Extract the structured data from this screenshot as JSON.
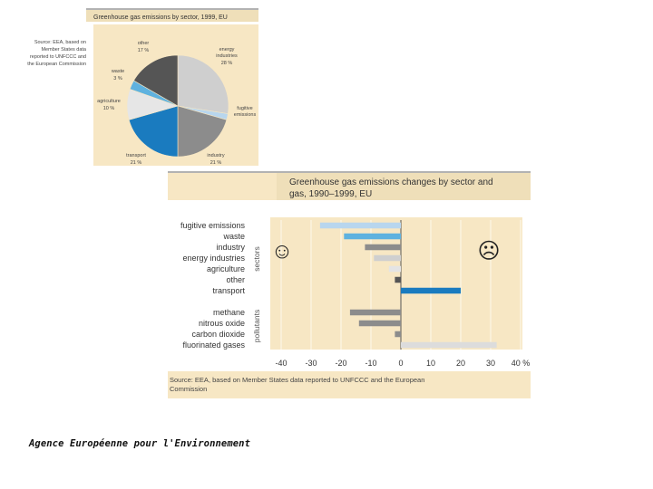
{
  "caption": "Agence Européenne pour l'Environnement",
  "colors": {
    "panel": "#f7e7c4",
    "header": "#efdfb9",
    "blue_dark": "#1a7bbf",
    "blue_light": "#5fb2df",
    "grey_dark": "#555555",
    "grey_mid": "#8c8c8c",
    "grey_light": "#cfcfcf",
    "lightblue_bar": "#b8d6ee"
  },
  "pie_chart": {
    "title": "Greenhouse gas emissions by sector, 1999, EU",
    "source_lines": [
      "Source: EEA, based on",
      "Member States data",
      "reported to UNFCCC and",
      "the European Commission"
    ],
    "chart_data": {
      "type": "pie",
      "title": "Greenhouse gas emissions by sector, 1999, EU",
      "slices": [
        {
          "name": "energy industries",
          "label_lines": [
            "energy",
            "industries"
          ],
          "value_label": "28 %",
          "value": 28,
          "color": "#cfcfcf"
        },
        {
          "name": "fugitive emissions",
          "label_lines": [
            "fugitive",
            "emissions"
          ],
          "value_label": "",
          "value": 2,
          "color": "#b8d6ee"
        },
        {
          "name": "industry",
          "label_lines": [
            "industry"
          ],
          "value_label": "21 %",
          "value": 21,
          "color": "#8c8c8c"
        },
        {
          "name": "transport",
          "label_lines": [
            "transport"
          ],
          "value_label": "21 %",
          "value": 21,
          "color": "#1a7bbf"
        },
        {
          "name": "agriculture",
          "label_lines": [
            "agriculture"
          ],
          "value_label": "10 %",
          "value": 10,
          "color": "#e6e6e6"
        },
        {
          "name": "waste",
          "label_lines": [
            "waste"
          ],
          "value_label": "3 %",
          "value": 3,
          "color": "#5fb2df"
        },
        {
          "name": "other",
          "label_lines": [
            "other"
          ],
          "value_label": "17 %",
          "value": 17,
          "color": "#555555"
        }
      ]
    }
  },
  "bar_chart": {
    "title_lines": [
      "Greenhouse gas emissions changes by sector and",
      "gas, 1990–1999, EU"
    ],
    "source_lines": [
      "Source: EEA, based on Member States data reported to UNFCCC and the European",
      "Commission"
    ],
    "group_labels": {
      "sectors": "sectors",
      "pollutants": "pollutants"
    },
    "smileys": {
      "positive": "☺",
      "negative": "☹"
    },
    "chart_data": {
      "type": "bar",
      "orientation": "horizontal",
      "title": "Greenhouse gas emissions changes by sector and gas, 1990–1999, EU",
      "xlim": [
        -40,
        40
      ],
      "xticks": [
        "-40",
        "-30",
        "-20",
        "-10",
        "0",
        "10",
        "20",
        "30",
        "40 %"
      ],
      "xtick_values": [
        -40,
        -30,
        -20,
        -10,
        0,
        10,
        20,
        30,
        40
      ],
      "groups": [
        {
          "name": "sectors",
          "bars": [
            {
              "label": "fugitive emissions",
              "value": -27,
              "color": "#b8d6ee"
            },
            {
              "label": "waste",
              "value": -19,
              "color": "#5fb2df"
            },
            {
              "label": "industry",
              "value": -12,
              "color": "#8c8c8c"
            },
            {
              "label": "energy industries",
              "value": -9,
              "color": "#cfcfcf"
            },
            {
              "label": "agriculture",
              "value": -4,
              "color": "#e4e4e4"
            },
            {
              "label": "other",
              "value": -2,
              "color": "#555555"
            },
            {
              "label": "transport",
              "value": 20,
              "color": "#1a7bbf"
            }
          ]
        },
        {
          "name": "pollutants",
          "bars": [
            {
              "label": "methane",
              "value": -17,
              "color": "#8c8c8c"
            },
            {
              "label": "nitrous oxide",
              "value": -14,
              "color": "#8c8c8c"
            },
            {
              "label": "carbon dioxide",
              "value": -2,
              "color": "#8c8c8c"
            },
            {
              "label": "fluorinated gases",
              "value": 32,
              "color": "#dcdcdc"
            }
          ]
        }
      ]
    }
  }
}
